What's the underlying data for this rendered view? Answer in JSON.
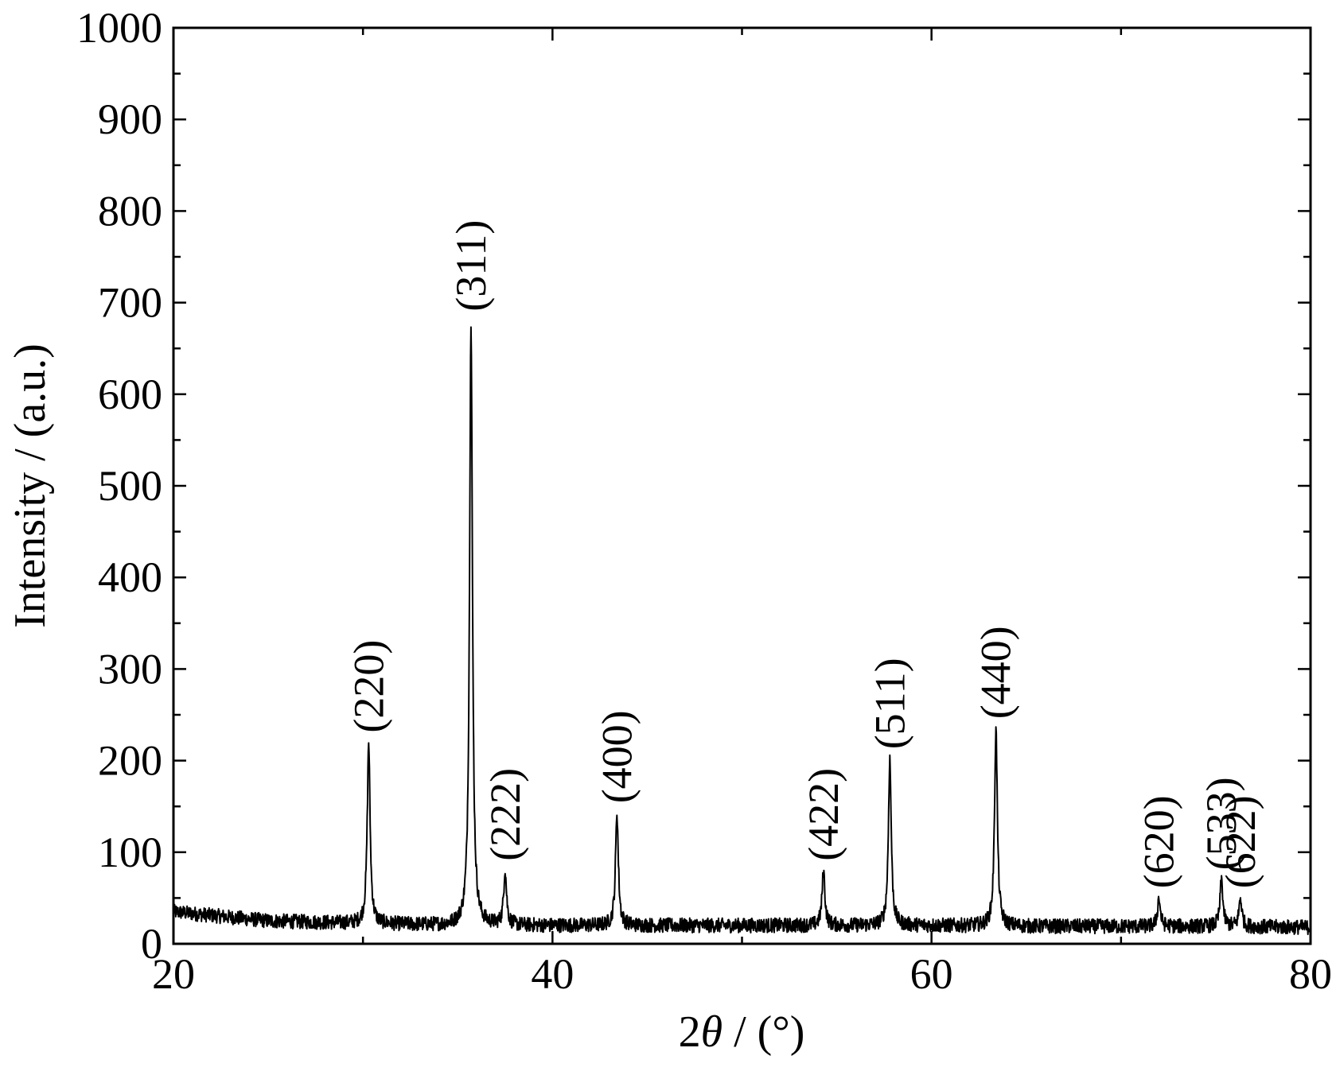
{
  "chart_data": {
    "type": "line",
    "title": "",
    "xlabel_prefix": "2",
    "xlabel_symbol": "θ",
    "xlabel_suffix": " / (°)",
    "ylabel": "Intensity / (a.u.)",
    "xlim": [
      20,
      80
    ],
    "ylim": [
      0,
      1000
    ],
    "x_ticks": [
      20,
      40,
      60,
      80
    ],
    "y_ticks": [
      0,
      100,
      200,
      300,
      400,
      500,
      600,
      700,
      800,
      900,
      1000
    ],
    "grid": false,
    "line_color": "#000000",
    "baseline": [
      [
        20,
        35
      ],
      [
        25,
        25
      ],
      [
        30,
        22
      ],
      [
        35,
        20
      ],
      [
        40,
        20
      ],
      [
        45,
        20
      ],
      [
        50,
        20
      ],
      [
        55,
        20
      ],
      [
        60,
        20
      ],
      [
        65,
        19
      ],
      [
        70,
        19
      ],
      [
        75,
        19
      ],
      [
        80,
        18
      ]
    ],
    "peaks": [
      {
        "label": "(220)",
        "x": 30.3,
        "y": 220
      },
      {
        "label": "(311)",
        "x": 35.7,
        "y": 680
      },
      {
        "label": "(222)",
        "x": 37.5,
        "y": 80
      },
      {
        "label": "(400)",
        "x": 43.4,
        "y": 143
      },
      {
        "label": "(422)",
        "x": 54.3,
        "y": 80
      },
      {
        "label": "(511)",
        "x": 57.8,
        "y": 202
      },
      {
        "label": "(440)",
        "x": 63.4,
        "y": 235
      },
      {
        "label": "(620)",
        "x": 72.0,
        "y": 50
      },
      {
        "label": "(533)",
        "x": 75.3,
        "y": 70
      },
      {
        "label": "(622)",
        "x": 76.3,
        "y": 50
      }
    ]
  }
}
